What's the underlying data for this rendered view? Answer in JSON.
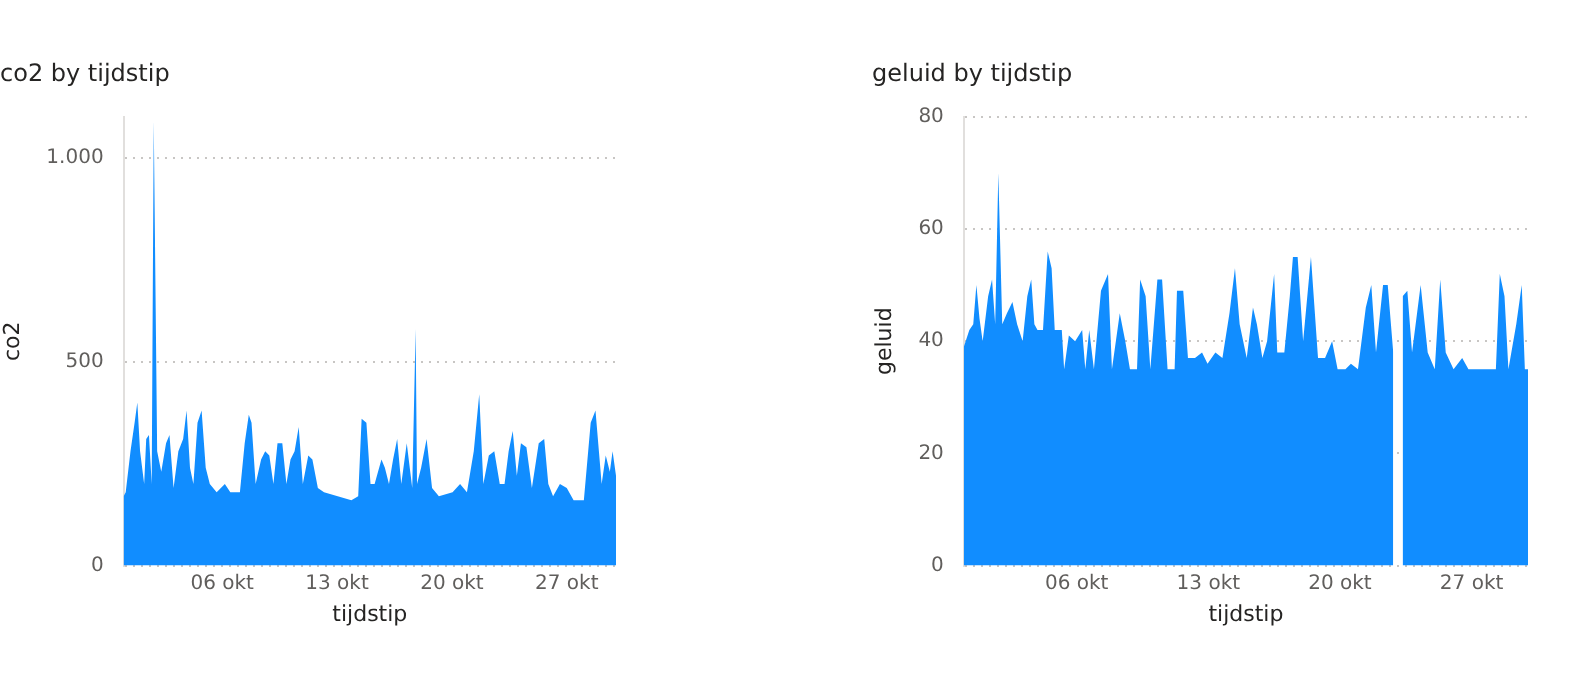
{
  "chart_data": [
    {
      "type": "area",
      "title": "co2 by tijdstip",
      "xlabel": "tijdstip",
      "ylabel": "co2",
      "grid": "y",
      "color": "#118dff",
      "xlim": [
        "--09-30T00:00",
        "--10-30T00:00"
      ],
      "xticks": [
        {
          "value": "--10-06",
          "label": "06 okt"
        },
        {
          "value": "--10-13",
          "label": "13 okt"
        },
        {
          "value": "--10-20",
          "label": "20 okt"
        },
        {
          "value": "--10-27",
          "label": "27 okt"
        }
      ],
      "ylim": [
        0,
        1100
      ],
      "yticks": [
        0,
        500,
        {
          "value": 1000,
          "label": "1.000"
        }
      ],
      "x": [
        "--09-30T00:00",
        "--09-30T03:00",
        "--09-30T10:00",
        "--09-30T16:00",
        "--09-30T20:00",
        "--10-01T00:00",
        "--10-01T06:00",
        "--10-01T09:00",
        "--10-01T13:00",
        "--10-01T17:00",
        "--10-01T20:00",
        "--10-02T01:00",
        "--10-02T07:00",
        "--10-02T14:00",
        "--10-02T19:00",
        "--10-03T01:00",
        "--10-03T08:00",
        "--10-03T15:00",
        "--10-03T20:00",
        "--10-04T01:00",
        "--10-04T06:00",
        "--10-04T12:00",
        "--10-04T18:00",
        "--10-05T00:00",
        "--10-05T06:00",
        "--10-05T16:00",
        "--10-06T04:00",
        "--10-06T12:00",
        "--10-07T02:00",
        "--10-07T09:00",
        "--10-07T15:00",
        "--10-07T19:00",
        "--10-08T01:00",
        "--10-08T09:00",
        "--10-08T15:00",
        "--10-08T21:00",
        "--10-09T03:00",
        "--10-09T09:00",
        "--10-09T16:00",
        "--10-09T22:00",
        "--10-10T04:00",
        "--10-10T10:00",
        "--10-10T16:00",
        "--10-10T22:00",
        "--10-11T06:00",
        "--10-11T12:00",
        "--10-11T20:00",
        "--10-12T05:00",
        "--10-13T01:00",
        "--10-13T21:00",
        "--10-14T07:00",
        "--10-14T12:00",
        "--10-14T19:00",
        "--10-15T01:00",
        "--10-15T07:00",
        "--10-15T17:00",
        "--10-15T22:00",
        "--10-16T04:00",
        "--10-16T10:00",
        "--10-16T16:00",
        "--10-16T22:00",
        "--10-17T06:00",
        "--10-17T14:00",
        "--10-17T19:00",
        "--10-17T21:00",
        "--10-18T03:00",
        "--10-18T11:00",
        "--10-18T19:00",
        "--10-19T05:00",
        "--10-20T01:00",
        "--10-20T12:00",
        "--10-20T22:00",
        "--10-21T08:00",
        "--10-21T16:00",
        "--10-21T22:00",
        "--10-22T06:00",
        "--10-22T14:00",
        "--10-22T22:00",
        "--10-23T05:00",
        "--10-23T11:00",
        "--10-23T17:00",
        "--10-23T23:00",
        "--10-24T05:00",
        "--10-24T13:00",
        "--10-24T21:00",
        "--10-25T07:00",
        "--10-25T15:00",
        "--10-25T21:00",
        "--10-26T04:00",
        "--10-26T14:00",
        "--10-27T00:00",
        "--10-27T10:00",
        "--10-28T01:00",
        "--10-28T11:00",
        "--10-28T18:00",
        "--10-28T23:00",
        "--10-29T03:00",
        "--10-29T09:00",
        "--10-29T15:00",
        "--10-29T19:00",
        "--10-30T00:00"
      ],
      "values": [
        170,
        180,
        280,
        350,
        400,
        280,
        200,
        310,
        320,
        200,
        1090,
        280,
        230,
        300,
        320,
        190,
        280,
        310,
        380,
        240,
        200,
        350,
        380,
        240,
        200,
        180,
        200,
        180,
        180,
        300,
        370,
        350,
        200,
        260,
        280,
        270,
        200,
        300,
        300,
        200,
        260,
        280,
        340,
        200,
        270,
        260,
        190,
        180,
        170,
        160,
        170,
        360,
        350,
        200,
        200,
        260,
        240,
        200,
        260,
        310,
        200,
        300,
        190,
        580,
        200,
        240,
        310,
        190,
        170,
        180,
        200,
        180,
        280,
        420,
        200,
        270,
        280,
        200,
        200,
        280,
        330,
        220,
        300,
        290,
        190,
        300,
        310,
        200,
        170,
        200,
        190,
        160,
        160,
        350,
        380,
        280,
        200,
        270,
        230,
        280,
        220
      ]
    },
    {
      "type": "area",
      "title": "geluid by tijdstip",
      "xlabel": "tijdstip",
      "ylabel": "geluid",
      "grid": "y",
      "color": "#118dff",
      "xlim": [
        "--09-30T00:00",
        "--10-30T00:00"
      ],
      "xticks": [
        {
          "value": "--10-06",
          "label": "06 okt"
        },
        {
          "value": "--10-13",
          "label": "13 okt"
        },
        {
          "value": "--10-20",
          "label": "20 okt"
        },
        {
          "value": "--10-27",
          "label": "27 okt"
        }
      ],
      "ylim": [
        0,
        80
      ],
      "yticks": [
        0,
        20,
        40,
        60,
        80
      ],
      "x": [
        "--09-30T00:00",
        "--09-30T07:00",
        "--09-30T12:00",
        "--09-30T16:00",
        "--09-30T20:00",
        "--10-01T00:00",
        "--10-01T07:00",
        "--10-01T12:00",
        "--10-01T16:00",
        "--10-01T20:00",
        "--10-02T01:00",
        "--10-02T07:00",
        "--10-02T14:00",
        "--10-02T20:00",
        "--10-03T03:00",
        "--10-03T09:00",
        "--10-03T14:00",
        "--10-03T18:00",
        "--10-03T22:00",
        "--10-04T05:00",
        "--10-04T11:00",
        "--10-04T16:00",
        "--10-04T20:00",
        "--10-05T05:00",
        "--10-05T08:00",
        "--10-05T14:00",
        "--10-05T22:00",
        "--10-06T07:00",
        "--10-06T11:00",
        "--10-06T16:00",
        "--10-06T22:00",
        "--10-07T07:00",
        "--10-07T16:00",
        "--10-07T21:00",
        "--10-08T07:00",
        "--10-08T14:00",
        "--10-08T20:00",
        "--10-09T05:00",
        "--10-09T09:00",
        "--10-09T16:00",
        "--10-09T22:00",
        "--10-10T07:00",
        "--10-10T13:00",
        "--10-10T20:00",
        "--10-11T05:00",
        "--10-11T08:00",
        "--10-11T16:00",
        "--10-11T22:00",
        "--10-12T07:00",
        "--10-12T16:00",
        "--10-12T23:00",
        "--10-13T09:00",
        "--10-13T18:00",
        "--10-14T03:00",
        "--10-14T10:00",
        "--10-14T16:00",
        "--10-15T01:00",
        "--10-15T09:00",
        "--10-15T14:00",
        "--10-15T21:00",
        "--10-16T03:00",
        "--10-16T12:00",
        "--10-16T16:00",
        "--10-17T01:00",
        "--10-17T08:00",
        "--10-17T12:00",
        "--10-17T18:00",
        "--10-18T01:00",
        "--10-18T11:00",
        "--10-18T20:00",
        "--10-19T05:00",
        "--10-19T14:00",
        "--10-19T21:00",
        "--10-20T07:00",
        "--10-20T14:00",
        "--10-20T23:00",
        "--10-21T09:00",
        "--10-21T16:00",
        "--10-21T22:00",
        "--10-22T07:00",
        "--10-22T13:00",
        "--10-22T20:00",
        "--10-23T01:00",
        "--10-23T08:00",
        "--10-23T14:00",
        "--10-23T20:00",
        "--10-24T07:00",
        "--10-24T16:00",
        "--10-25T01:00",
        "--10-25T08:00",
        "--10-25T15:00",
        "--10-26T01:00",
        "--10-26T12:00",
        "--10-26T20:00",
        "--10-27T14:00",
        "--10-28T07:00",
        "--10-28T12:00",
        "--10-28T18:00",
        "--10-28T23:00",
        "--10-29T09:00",
        "--10-29T16:00",
        "--10-29T20:00",
        "--10-30T00:00"
      ],
      "values": [
        39,
        42,
        43,
        50,
        44,
        40,
        48,
        51,
        43,
        70,
        43,
        45,
        47,
        43,
        40,
        48,
        51,
        43,
        42,
        42,
        56,
        53,
        42,
        42,
        35,
        41,
        40,
        42,
        35,
        42,
        35,
        49,
        52,
        35,
        45,
        40,
        35,
        35,
        51,
        48,
        35,
        51,
        51,
        35,
        35,
        49,
        49,
        37,
        37,
        38,
        36,
        38,
        37,
        45,
        53,
        43,
        37,
        46,
        43,
        37,
        40,
        52,
        38,
        38,
        48,
        55,
        55,
        40,
        55,
        37,
        37,
        40,
        35,
        35,
        36,
        35,
        46,
        50,
        38,
        50,
        50,
        38,
        null,
        48,
        49,
        38,
        50,
        38,
        35,
        51,
        38,
        35,
        37,
        35,
        35,
        35,
        52,
        48,
        35,
        43,
        50,
        35,
        35
      ]
    }
  ]
}
